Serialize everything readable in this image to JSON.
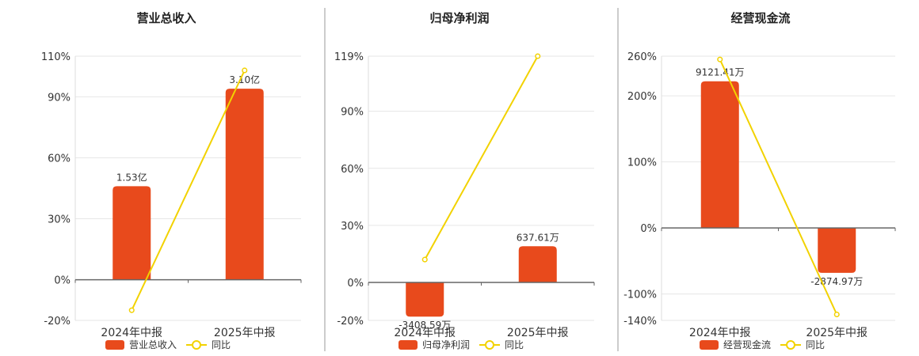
{
  "colors": {
    "bar": "#e84a1c",
    "line": "#f2d200",
    "grid": "#e6e6e6",
    "axis": "#666666",
    "divider": "#999999"
  },
  "chart_data": [
    {
      "type": "bar",
      "title": "营业总收入",
      "categories": [
        "2024年中报",
        "2025年中报"
      ],
      "series": [
        {
          "name": "营业总收入",
          "type": "bar",
          "values": [
            46,
            94
          ],
          "labels": [
            "1.53亿",
            "3.10亿"
          ]
        },
        {
          "name": "同比",
          "type": "line",
          "values": [
            -15,
            103
          ]
        }
      ],
      "ylim": [
        -20,
        110
      ],
      "yticks": [
        -20,
        0,
        30,
        60,
        90,
        110
      ],
      "ytick_labels": [
        "-20%",
        "0%",
        "30%",
        "60%",
        "90%",
        "110%"
      ],
      "legend": "bottom"
    },
    {
      "type": "bar",
      "title": "归母净利润",
      "categories": [
        "2024年中报",
        "2025年中报"
      ],
      "series": [
        {
          "name": "归母净利润",
          "type": "bar",
          "values": [
            -18,
            19
          ],
          "labels": [
            "-3408.59万",
            "637.61万"
          ]
        },
        {
          "name": "同比",
          "type": "line",
          "values": [
            12,
            119
          ]
        }
      ],
      "ylim": [
        -20,
        119
      ],
      "yticks": [
        -20,
        0,
        30,
        60,
        90,
        119
      ],
      "ytick_labels": [
        "-20%",
        "0%",
        "30%",
        "60%",
        "90%",
        "119%"
      ],
      "legend": "bottom"
    },
    {
      "type": "bar",
      "title": "经营现金流",
      "categories": [
        "2024年中报",
        "2025年中报"
      ],
      "series": [
        {
          "name": "经营现金流",
          "type": "bar",
          "values": [
            222,
            -68
          ],
          "labels": [
            "9121.41万",
            "-2874.97万"
          ]
        },
        {
          "name": "同比",
          "type": "line",
          "values": [
            255,
            -131
          ]
        }
      ],
      "ylim": [
        -140,
        260
      ],
      "yticks": [
        -140,
        -100,
        0,
        100,
        200,
        260
      ],
      "ytick_labels": [
        "-140%",
        "-100%",
        "0%",
        "100%",
        "200%",
        "260%"
      ],
      "legend": "bottom"
    }
  ]
}
